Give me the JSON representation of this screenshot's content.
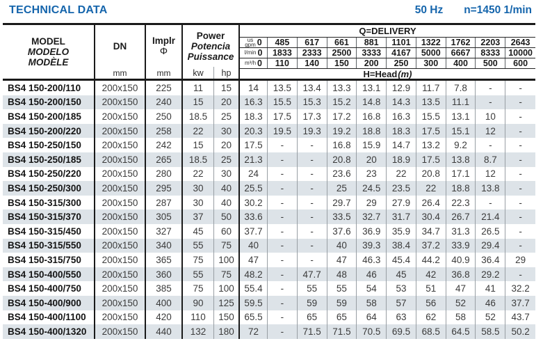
{
  "title": "TECHNICAL DATA",
  "frequency": "50 Hz",
  "speed": "n=1450 1/min",
  "colors": {
    "accent_blue": "#1565ac",
    "row_alt": "#dde3e8",
    "border_black": "#1a1a1a",
    "divider_gray": "#989ea3"
  },
  "header": {
    "model_lines": [
      "MODEL",
      "MODELO",
      "MODÈLE"
    ],
    "dn_label": "DN",
    "dn_unit": "mm",
    "impeller_label": "Implr",
    "impeller_symbol": "Φ",
    "impeller_unit": "mm",
    "power_lines": [
      "Power",
      "Potencia",
      "Puissance"
    ],
    "power_unit_kw": "kw",
    "power_unit_hp": "hp",
    "delivery_title": "Q=DELIVERY",
    "head_title": "H=Head",
    "head_unit": "(m)",
    "delivery_rows": [
      {
        "unit_lines": [
          "us",
          "gpm"
        ],
        "values": [
          "0",
          "485",
          "617",
          "661",
          "881",
          "1101",
          "1322",
          "1762",
          "2203",
          "2643"
        ]
      },
      {
        "unit_lines": [
          "l/min"
        ],
        "values": [
          "0",
          "1833",
          "2333",
          "2500",
          "3333",
          "4167",
          "5000",
          "6667",
          "8333",
          "10000"
        ]
      },
      {
        "unit_lines": [
          "m³/h"
        ],
        "values": [
          "0",
          "110",
          "140",
          "150",
          "200",
          "250",
          "300",
          "400",
          "500",
          "600"
        ]
      }
    ]
  },
  "rows": [
    {
      "model": "BS4 150-200/110",
      "dn": "200x150",
      "impeller": "225",
      "kw": "11",
      "hp": "15",
      "head": [
        "14",
        "13.5",
        "13.4",
        "13.3",
        "13.1",
        "12.9",
        "11.7",
        "7.8",
        "-",
        "-"
      ]
    },
    {
      "model": "BS4 150-200/150",
      "dn": "200x150",
      "impeller": "240",
      "kw": "15",
      "hp": "20",
      "head": [
        "16.3",
        "15.5",
        "15.3",
        "15.2",
        "14.8",
        "14.3",
        "13.5",
        "11.1",
        "-",
        "-"
      ]
    },
    {
      "model": "BS4 150-200/185",
      "dn": "200x150",
      "impeller": "250",
      "kw": "18.5",
      "hp": "25",
      "head": [
        "18.3",
        "17.5",
        "17.3",
        "17.2",
        "16.8",
        "16.3",
        "15.5",
        "13.1",
        "10",
        "-"
      ]
    },
    {
      "model": "BS4 150-200/220",
      "dn": "200x150",
      "impeller": "258",
      "kw": "22",
      "hp": "30",
      "head": [
        "20.3",
        "19.5",
        "19.3",
        "19.2",
        "18.8",
        "18.3",
        "17.5",
        "15.1",
        "12",
        "-"
      ]
    },
    {
      "model": "BS4 150-250/150",
      "dn": "200x150",
      "impeller": "242",
      "kw": "15",
      "hp": "20",
      "head": [
        "17.5",
        "-",
        "-",
        "16.8",
        "15.9",
        "14.7",
        "13.2",
        "9.2",
        "-",
        "-"
      ]
    },
    {
      "model": "BS4 150-250/185",
      "dn": "200x150",
      "impeller": "265",
      "kw": "18.5",
      "hp": "25",
      "head": [
        "21.3",
        "-",
        "-",
        "20.8",
        "20",
        "18.9",
        "17.5",
        "13.8",
        "8.7",
        "-"
      ]
    },
    {
      "model": "BS4 150-250/220",
      "dn": "200x150",
      "impeller": "280",
      "kw": "22",
      "hp": "30",
      "head": [
        "24",
        "-",
        "-",
        "23.6",
        "23",
        "22",
        "20.8",
        "17.1",
        "12",
        "-"
      ]
    },
    {
      "model": "BS4 150-250/300",
      "dn": "200x150",
      "impeller": "295",
      "kw": "30",
      "hp": "40",
      "head": [
        "25.5",
        "-",
        "-",
        "25",
        "24.5",
        "23.5",
        "22",
        "18.8",
        "13.8",
        "-"
      ]
    },
    {
      "model": "BS4 150-315/300",
      "dn": "200x150",
      "impeller": "287",
      "kw": "30",
      "hp": "40",
      "head": [
        "30.2",
        "-",
        "-",
        "29.7",
        "29",
        "27.9",
        "26.4",
        "22.3",
        "-",
        "-"
      ]
    },
    {
      "model": "BS4 150-315/370",
      "dn": "200x150",
      "impeller": "305",
      "kw": "37",
      "hp": "50",
      "head": [
        "33.6",
        "-",
        "-",
        "33.5",
        "32.7",
        "31.7",
        "30.4",
        "26.7",
        "21.4",
        "-"
      ]
    },
    {
      "model": "BS4 150-315/450",
      "dn": "200x150",
      "impeller": "327",
      "kw": "45",
      "hp": "60",
      "head": [
        "37.7",
        "-",
        "-",
        "37.6",
        "36.9",
        "35.9",
        "34.7",
        "31.3",
        "26.5",
        "-"
      ]
    },
    {
      "model": "BS4 150-315/550",
      "dn": "200x150",
      "impeller": "340",
      "kw": "55",
      "hp": "75",
      "head": [
        "40",
        "-",
        "-",
        "40",
        "39.3",
        "38.4",
        "37.2",
        "33.9",
        "29.4",
        "-"
      ]
    },
    {
      "model": "BS4 150-315/750",
      "dn": "200x150",
      "impeller": "365",
      "kw": "75",
      "hp": "100",
      "head": [
        "47",
        "-",
        "-",
        "47",
        "46.3",
        "45.4",
        "44.2",
        "40.9",
        "36.4",
        "29"
      ]
    },
    {
      "model": "BS4 150-400/550",
      "dn": "200x150",
      "impeller": "360",
      "kw": "55",
      "hp": "75",
      "head": [
        "48.2",
        "-",
        "47.7",
        "48",
        "46",
        "45",
        "42",
        "36.8",
        "29.2",
        "-"
      ]
    },
    {
      "model": "BS4 150-400/750",
      "dn": "200x150",
      "impeller": "385",
      "kw": "75",
      "hp": "100",
      "head": [
        "55.4",
        "-",
        "55",
        "55",
        "54",
        "53",
        "51",
        "47",
        "41",
        "32.2"
      ]
    },
    {
      "model": "BS4 150-400/900",
      "dn": "200x150",
      "impeller": "400",
      "kw": "90",
      "hp": "125",
      "head": [
        "59.5",
        "-",
        "59",
        "59",
        "58",
        "57",
        "56",
        "52",
        "46",
        "37.7"
      ]
    },
    {
      "model": "BS4 150-400/1100",
      "dn": "200x150",
      "impeller": "420",
      "kw": "110",
      "hp": "150",
      "head": [
        "65.5",
        "-",
        "65",
        "65",
        "64",
        "63",
        "62",
        "58",
        "52",
        "43.7"
      ]
    },
    {
      "model": "BS4 150-400/1320",
      "dn": "200x150",
      "impeller": "440",
      "kw": "132",
      "hp": "180",
      "head": [
        "72",
        "-",
        "71.5",
        "71.5",
        "70.5",
        "69.5",
        "68.5",
        "64.5",
        "58.5",
        "50.2"
      ]
    }
  ]
}
